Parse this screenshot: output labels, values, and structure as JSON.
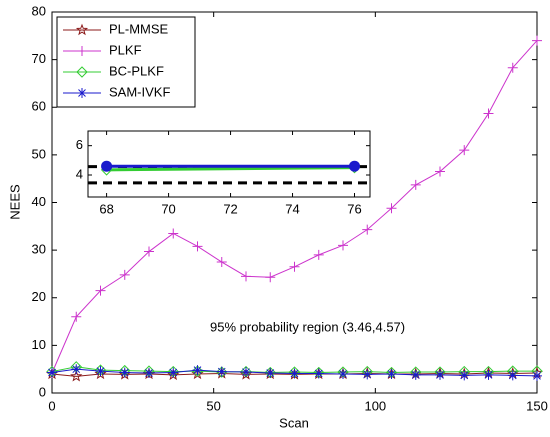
{
  "chart_data": {
    "type": "line",
    "xlabel": "Scan",
    "ylabel": "NEES",
    "annotation": "95% probability region (3.46,4.57)",
    "legend": "upper left",
    "xlim": [
      0,
      150
    ],
    "ylim": [
      0,
      80
    ],
    "xticks": [
      0,
      50,
      100,
      150
    ],
    "yticks": [
      0,
      10,
      20,
      30,
      40,
      50,
      60,
      70,
      80
    ],
    "x": [
      0,
      7.5,
      15,
      22.5,
      30,
      37.5,
      45,
      52.5,
      60,
      67.5,
      75,
      82.5,
      90,
      97.5,
      105,
      112.5,
      120,
      127.5,
      135,
      142.5,
      150
    ],
    "series": [
      {
        "name": "PL-MMSE",
        "color": "#8b1a1a",
        "marker": "star",
        "values": [
          4,
          3.5,
          4,
          3.9,
          4,
          3.8,
          4,
          4.1,
          3.9,
          4,
          3.9,
          4,
          4,
          4.1,
          4,
          4,
          4.1,
          4,
          4.2,
          4.1,
          4.2
        ]
      },
      {
        "name": "PLKF",
        "color": "#cc33cc",
        "marker": "plus",
        "values": [
          4.2,
          16,
          21.5,
          24.8,
          29.7,
          33.5,
          30.8,
          27.5,
          24.5,
          24.3,
          26.5,
          29,
          31,
          34.3,
          38.8,
          43.7,
          46.5,
          51,
          58.7,
          68.3,
          74
        ]
      },
      {
        "name": "BC-PLKF",
        "color": "#33cc33",
        "marker": "diamond",
        "values": [
          4.5,
          5.5,
          4.8,
          4.7,
          4.6,
          4.5,
          4.6,
          4.4,
          4.5,
          4.3,
          4.4,
          4.3,
          4.4,
          4.5,
          4.3,
          4.4,
          4.4,
          4.5,
          4.5,
          4.6,
          4.6
        ]
      },
      {
        "name": "SAM-IVKF",
        "color": "#1a1acc",
        "marker": "asterisk",
        "values": [
          4.3,
          5,
          4.6,
          4.3,
          4.2,
          4.3,
          4.8,
          4.5,
          4.4,
          4.2,
          4.1,
          4.1,
          4,
          3.9,
          4,
          3.8,
          3.8,
          3.7,
          3.8,
          3.7,
          3.6
        ]
      }
    ],
    "inset": {
      "xlim": [
        67.4,
        76.5
      ],
      "ylim": [
        2.5,
        7
      ],
      "xticks": [
        68,
        70,
        72,
        74,
        76
      ],
      "yticks": [
        4,
        6
      ],
      "reference_lines": [
        3.46,
        4.57
      ],
      "x": [
        68,
        76
      ],
      "series": [
        {
          "color": "#33cc33",
          "marker": "diamond",
          "values": [
            4.35,
            4.5
          ]
        },
        {
          "color": "#1a1acc",
          "marker": "dot",
          "values": [
            4.6,
            4.6
          ]
        }
      ]
    }
  }
}
